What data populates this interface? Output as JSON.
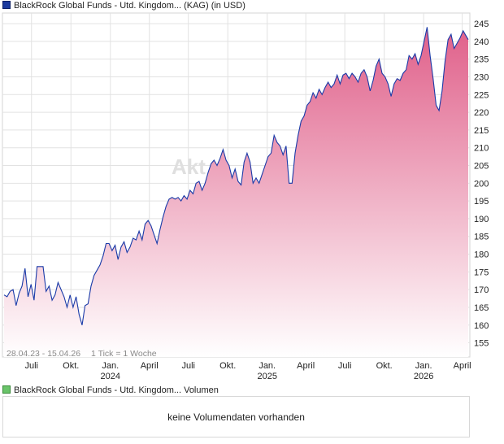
{
  "legend": {
    "price_label": "BlackRock Global Funds - Utd. Kingdom... (KAG) (in USD)",
    "volume_label": "BlackRock Global Funds - Utd. Kingdom... Volumen"
  },
  "colors": {
    "line": "#1a3aa8",
    "fill_top": "#e0608a",
    "fill_bottom": "#ffffff",
    "grid": "#e2e2e2"
  },
  "date_range_label": "28.04.23 - 15.04.26",
  "tick_note": "1 Tick = 1 Woche",
  "volume_message": "keine Volumendaten vorhanden",
  "chart_data": {
    "type": "area",
    "ylim": [
      151,
      248
    ],
    "yticks": [
      155,
      160,
      165,
      170,
      175,
      180,
      185,
      190,
      195,
      200,
      205,
      210,
      215,
      220,
      225,
      230,
      235,
      240,
      245
    ],
    "x_ticks": [
      {
        "month": "Juli",
        "date": "2023-07-01"
      },
      {
        "month": "Okt.",
        "date": "2023-10-01"
      },
      {
        "month": "Jan.",
        "year": "2024",
        "date": "2024-01-01"
      },
      {
        "month": "April",
        "date": "2024-04-01"
      },
      {
        "month": "Juli",
        "date": "2024-07-01"
      },
      {
        "month": "Okt.",
        "date": "2024-10-01"
      },
      {
        "month": "Jan.",
        "year": "2025",
        "date": "2025-01-01"
      },
      {
        "month": "April",
        "date": "2025-04-01"
      },
      {
        "month": "Juli",
        "date": "2025-07-01"
      },
      {
        "month": "Okt.",
        "date": "2025-10-01"
      },
      {
        "month": "Jan.",
        "year": "2026",
        "date": "2026-01-01"
      },
      {
        "month": "April",
        "date": "2026-04-01"
      }
    ],
    "series": [
      {
        "points": [
          [
            "2023-04-28",
            168.5
          ],
          [
            "2023-05-05",
            168.0
          ],
          [
            "2023-05-12",
            169.5
          ],
          [
            "2023-05-19",
            170.0
          ],
          [
            "2023-05-26",
            165.5
          ],
          [
            "2023-06-02",
            169.0
          ],
          [
            "2023-06-09",
            171.0
          ],
          [
            "2023-06-16",
            176.0
          ],
          [
            "2023-06-23",
            168.0
          ],
          [
            "2023-06-30",
            171.5
          ],
          [
            "2023-07-07",
            167.0
          ],
          [
            "2023-07-14",
            176.5
          ],
          [
            "2023-07-21",
            176.5
          ],
          [
            "2023-07-28",
            176.5
          ],
          [
            "2023-08-04",
            169.5
          ],
          [
            "2023-08-11",
            171.0
          ],
          [
            "2023-08-18",
            167.0
          ],
          [
            "2023-08-25",
            168.5
          ],
          [
            "2023-09-01",
            172.0
          ],
          [
            "2023-09-08",
            170.0
          ],
          [
            "2023-09-15",
            168.0
          ],
          [
            "2023-09-22",
            165.0
          ],
          [
            "2023-09-29",
            168.5
          ],
          [
            "2023-10-06",
            165.0
          ],
          [
            "2023-10-13",
            168.0
          ],
          [
            "2023-10-20",
            163.0
          ],
          [
            "2023-10-27",
            160.0
          ],
          [
            "2023-11-03",
            165.5
          ],
          [
            "2023-11-10",
            166.0
          ],
          [
            "2023-11-17",
            171.0
          ],
          [
            "2023-11-24",
            174.0
          ],
          [
            "2023-12-01",
            175.5
          ],
          [
            "2023-12-08",
            177.0
          ],
          [
            "2023-12-15",
            179.5
          ],
          [
            "2023-12-22",
            183.0
          ],
          [
            "2023-12-29",
            183.0
          ],
          [
            "2024-01-05",
            181.0
          ],
          [
            "2024-01-12",
            182.5
          ],
          [
            "2024-01-19",
            178.5
          ],
          [
            "2024-01-26",
            182.0
          ],
          [
            "2024-02-02",
            183.5
          ],
          [
            "2024-02-09",
            180.5
          ],
          [
            "2024-02-16",
            182.0
          ],
          [
            "2024-02-23",
            184.5
          ],
          [
            "2024-03-01",
            184.0
          ],
          [
            "2024-03-08",
            186.5
          ],
          [
            "2024-03-15",
            184.0
          ],
          [
            "2024-03-22",
            188.5
          ],
          [
            "2024-03-29",
            189.5
          ],
          [
            "2024-04-05",
            188.0
          ],
          [
            "2024-04-12",
            185.5
          ],
          [
            "2024-04-19",
            183.0
          ],
          [
            "2024-04-26",
            187.0
          ],
          [
            "2024-05-03",
            190.5
          ],
          [
            "2024-05-10",
            193.5
          ],
          [
            "2024-05-17",
            195.5
          ],
          [
            "2024-05-24",
            196.0
          ],
          [
            "2024-05-31",
            195.5
          ],
          [
            "2024-06-07",
            196.0
          ],
          [
            "2024-06-14",
            195.0
          ],
          [
            "2024-06-21",
            196.5
          ],
          [
            "2024-06-28",
            195.5
          ],
          [
            "2024-07-05",
            198.0
          ],
          [
            "2024-07-12",
            197.0
          ],
          [
            "2024-07-19",
            200.0
          ],
          [
            "2024-07-26",
            200.5
          ],
          [
            "2024-08-02",
            198.0
          ],
          [
            "2024-08-09",
            200.0
          ],
          [
            "2024-08-16",
            203.0
          ],
          [
            "2024-08-23",
            205.5
          ],
          [
            "2024-08-30",
            206.5
          ],
          [
            "2024-09-06",
            205.0
          ],
          [
            "2024-09-13",
            207.0
          ],
          [
            "2024-09-20",
            209.5
          ],
          [
            "2024-09-27",
            206.5
          ],
          [
            "2024-10-04",
            205.0
          ],
          [
            "2024-10-11",
            201.5
          ],
          [
            "2024-10-18",
            204.0
          ],
          [
            "2024-10-25",
            200.5
          ],
          [
            "2024-11-01",
            199.5
          ],
          [
            "2024-11-08",
            206.0
          ],
          [
            "2024-11-15",
            208.5
          ],
          [
            "2024-11-22",
            206.0
          ],
          [
            "2024-11-29",
            200.0
          ],
          [
            "2024-12-06",
            201.5
          ],
          [
            "2024-12-13",
            200.0
          ],
          [
            "2024-12-20",
            202.5
          ],
          [
            "2024-12-27",
            205.0
          ],
          [
            "2025-01-03",
            207.5
          ],
          [
            "2025-01-10",
            208.5
          ],
          [
            "2025-01-17",
            213.5
          ],
          [
            "2025-01-24",
            211.5
          ],
          [
            "2025-01-31",
            210.5
          ],
          [
            "2025-02-07",
            208.0
          ],
          [
            "2025-02-14",
            210.5
          ],
          [
            "2025-02-21",
            200.0
          ],
          [
            "2025-02-28",
            200.0
          ],
          [
            "2025-03-07",
            208.5
          ],
          [
            "2025-03-14",
            213.5
          ],
          [
            "2025-03-21",
            217.5
          ],
          [
            "2025-03-28",
            219.0
          ],
          [
            "2025-04-04",
            222.0
          ],
          [
            "2025-04-11",
            223.0
          ],
          [
            "2025-04-18",
            225.5
          ],
          [
            "2025-04-25",
            224.0
          ],
          [
            "2025-05-02",
            226.5
          ],
          [
            "2025-05-09",
            225.0
          ],
          [
            "2025-05-16",
            227.0
          ],
          [
            "2025-05-23",
            228.5
          ],
          [
            "2025-05-30",
            227.0
          ],
          [
            "2025-06-06",
            228.0
          ],
          [
            "2025-06-13",
            230.5
          ],
          [
            "2025-06-20",
            228.0
          ],
          [
            "2025-06-27",
            230.5
          ],
          [
            "2025-07-04",
            231.0
          ],
          [
            "2025-07-11",
            229.5
          ],
          [
            "2025-07-18",
            231.0
          ],
          [
            "2025-07-25",
            230.0
          ],
          [
            "2025-08-01",
            228.5
          ],
          [
            "2025-08-08",
            231.0
          ],
          [
            "2025-08-15",
            232.0
          ],
          [
            "2025-08-22",
            230.0
          ],
          [
            "2025-08-29",
            226.0
          ],
          [
            "2025-09-05",
            229.0
          ],
          [
            "2025-09-12",
            233.0
          ],
          [
            "2025-09-19",
            235.0
          ],
          [
            "2025-09-26",
            231.0
          ],
          [
            "2025-10-03",
            230.0
          ],
          [
            "2025-10-10",
            228.0
          ],
          [
            "2025-10-17",
            224.5
          ],
          [
            "2025-10-24",
            228.0
          ],
          [
            "2025-10-31",
            229.5
          ],
          [
            "2025-11-07",
            229.0
          ],
          [
            "2025-11-14",
            231.0
          ],
          [
            "2025-11-21",
            232.0
          ],
          [
            "2025-11-28",
            236.0
          ],
          [
            "2025-12-05",
            235.0
          ],
          [
            "2025-12-12",
            236.5
          ],
          [
            "2025-12-19",
            233.5
          ],
          [
            "2025-12-26",
            236.0
          ],
          [
            "2026-01-02",
            240.0
          ],
          [
            "2026-01-09",
            244.0
          ],
          [
            "2026-01-16",
            236.0
          ],
          [
            "2026-01-23",
            229.5
          ],
          [
            "2026-01-30",
            222.0
          ],
          [
            "2026-02-06",
            220.5
          ],
          [
            "2026-02-13",
            226.0
          ],
          [
            "2026-02-20",
            234.5
          ],
          [
            "2026-02-27",
            240.5
          ],
          [
            "2026-03-06",
            242.0
          ],
          [
            "2026-03-13",
            238.0
          ],
          [
            "2026-03-20",
            239.5
          ],
          [
            "2026-03-27",
            241.0
          ],
          [
            "2026-04-03",
            243.0
          ],
          [
            "2026-04-10",
            241.5
          ],
          [
            "2026-04-15",
            240.5
          ]
        ]
      }
    ]
  }
}
